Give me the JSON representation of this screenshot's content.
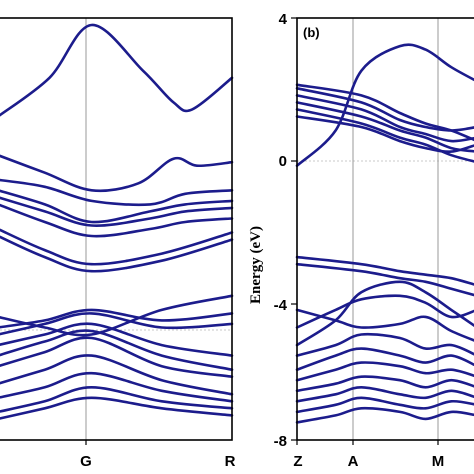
{
  "chart_data": [
    {
      "type": "line",
      "panel_label": "",
      "x_ticks": [
        "G",
        "R"
      ],
      "ylabel": "",
      "ylim": [
        -8,
        4
      ],
      "y_ticks": [],
      "series_color": "#1c1c8c",
      "series": [
        {
          "x": [
            0,
            0.22,
            0.4,
            0.62,
            0.75,
            0.83,
            1.0
          ],
          "values": [
            1.2,
            2.3,
            3.8,
            2.5,
            1.6,
            1.4,
            2.3
          ]
        },
        {
          "x": [
            0,
            0.2,
            0.4,
            0.6,
            0.75,
            0.85,
            1.0
          ],
          "values": [
            0.1,
            -0.4,
            -0.9,
            -0.7,
            0.0,
            -0.2,
            -0.1
          ]
        },
        {
          "x": [
            0,
            0.2,
            0.4,
            0.65,
            0.8,
            1.0
          ],
          "values": [
            -0.6,
            -0.8,
            -1.2,
            -1.3,
            -1.0,
            -0.9
          ]
        },
        {
          "x": [
            0,
            0.2,
            0.4,
            0.65,
            0.8,
            1.0
          ],
          "values": [
            -0.9,
            -1.3,
            -1.8,
            -1.5,
            -1.3,
            -1.2
          ]
        },
        {
          "x": [
            0,
            0.2,
            0.4,
            0.65,
            0.8,
            1.0
          ],
          "values": [
            -1.1,
            -1.5,
            -1.9,
            -1.7,
            -1.5,
            -1.4
          ]
        },
        {
          "x": [
            0,
            0.2,
            0.4,
            0.65,
            0.8,
            1.0
          ],
          "values": [
            -1.3,
            -1.8,
            -2.2,
            -2.0,
            -1.8,
            -1.7
          ]
        },
        {
          "x": [
            0,
            0.2,
            0.4,
            0.7,
            1.0
          ],
          "values": [
            -2.0,
            -2.6,
            -3.0,
            -2.7,
            -2.1
          ]
        },
        {
          "x": [
            0,
            0.2,
            0.4,
            0.7,
            1.0
          ],
          "values": [
            -2.2,
            -2.8,
            -3.2,
            -2.9,
            -2.3
          ]
        },
        {
          "x": [
            0,
            0.2,
            0.4,
            0.7,
            1.0
          ],
          "values": [
            -4.5,
            -4.8,
            -5.0,
            -4.3,
            -3.9
          ]
        },
        {
          "x": [
            0,
            0.2,
            0.4,
            0.7,
            1.0
          ],
          "values": [
            -4.8,
            -4.6,
            -4.3,
            -4.6,
            -4.4
          ]
        },
        {
          "x": [
            0,
            0.2,
            0.4,
            0.7,
            1.0
          ],
          "values": [
            -5.0,
            -4.7,
            -4.4,
            -4.8,
            -4.7
          ]
        },
        {
          "x": [
            0,
            0.2,
            0.4,
            0.7,
            1.0
          ],
          "values": [
            -5.3,
            -5.0,
            -4.7,
            -5.3,
            -5.6
          ]
        },
        {
          "x": [
            0,
            0.2,
            0.4,
            0.7,
            1.0
          ],
          "values": [
            -5.6,
            -5.2,
            -4.9,
            -5.6,
            -6.0
          ]
        },
        {
          "x": [
            0,
            0.2,
            0.4,
            0.7,
            1.0
          ],
          "values": [
            -5.9,
            -5.5,
            -5.1,
            -5.9,
            -6.2
          ]
        },
        {
          "x": [
            0,
            0.2,
            0.4,
            0.7,
            1.0
          ],
          "values": [
            -6.4,
            -6.0,
            -5.6,
            -6.3,
            -6.7
          ]
        },
        {
          "x": [
            0,
            0.2,
            0.4,
            0.7,
            1.0
          ],
          "values": [
            -6.8,
            -6.5,
            -6.1,
            -6.6,
            -6.9
          ]
        },
        {
          "x": [
            0,
            0.2,
            0.4,
            0.7,
            1.0
          ],
          "values": [
            -7.2,
            -6.9,
            -6.5,
            -6.9,
            -7.1
          ]
        },
        {
          "x": [
            0,
            0.2,
            0.4,
            0.7,
            1.0
          ],
          "values": [
            -7.4,
            -7.1,
            -6.8,
            -7.1,
            -7.3
          ]
        }
      ]
    },
    {
      "type": "line",
      "panel_label": "(b)",
      "x_ticks": [
        "Z",
        "A",
        "M"
      ],
      "ylabel": "Energy (eV)",
      "ylim": [
        -8,
        4
      ],
      "y_ticks": [
        "4",
        "0",
        "-4",
        "-8"
      ],
      "series_color": "#1c1c8c",
      "series": [
        {
          "x": [
            0,
            0.3,
            0.5,
            0.8,
            1.0,
            1.2,
            1.4
          ],
          "values": [
            -0.2,
            0.8,
            2.5,
            3.2,
            3.1,
            2.6,
            2.2
          ]
        },
        {
          "x": [
            0,
            0.5,
            0.8,
            1.0,
            1.2,
            1.4
          ],
          "values": [
            2.0,
            1.6,
            1.1,
            0.9,
            0.8,
            0.9
          ]
        },
        {
          "x": [
            0,
            0.5,
            0.8,
            1.0,
            1.2,
            1.4
          ],
          "values": [
            1.8,
            1.4,
            0.9,
            0.7,
            0.5,
            0.6
          ]
        },
        {
          "x": [
            0,
            0.5,
            0.8,
            1.0,
            1.2,
            1.4
          ],
          "values": [
            1.6,
            1.2,
            0.8,
            0.6,
            0.3,
            0.2
          ]
        },
        {
          "x": [
            0,
            0.5,
            0.8,
            1.0,
            1.2,
            1.4
          ],
          "values": [
            1.4,
            1.0,
            0.6,
            0.4,
            0.1,
            -0.1
          ]
        },
        {
          "x": [
            0,
            0.5,
            0.8,
            1.0,
            1.2,
            1.4
          ],
          "values": [
            1.2,
            0.9,
            0.5,
            0.3,
            0.2,
            0.4
          ]
        },
        {
          "x": [
            0,
            0.5,
            0.8,
            1.0,
            1.2,
            1.4
          ],
          "values": [
            2.1,
            1.8,
            1.3,
            1.0,
            0.8,
            0.5
          ]
        },
        {
          "x": [
            0,
            0.5,
            0.8,
            1.0,
            1.2,
            1.4
          ],
          "values": [
            -2.8,
            -3.0,
            -3.2,
            -3.3,
            -3.4,
            -3.6
          ]
        },
        {
          "x": [
            0,
            0.5,
            0.8,
            1.0,
            1.2,
            1.4
          ],
          "values": [
            -3.0,
            -3.2,
            -3.4,
            -3.5,
            -3.7,
            -3.9
          ]
        },
        {
          "x": [
            0,
            0.3,
            0.5,
            0.8,
            1.0,
            1.2,
            1.4
          ],
          "values": [
            -5.3,
            -4.6,
            -3.8,
            -3.5,
            -3.8,
            -4.3,
            -4.8
          ]
        },
        {
          "x": [
            0,
            0.3,
            0.5,
            0.8,
            1.0,
            1.2,
            1.4
          ],
          "values": [
            -4.8,
            -4.3,
            -4.0,
            -3.9,
            -4.1,
            -4.5,
            -4.3
          ]
        },
        {
          "x": [
            0,
            0.3,
            0.5,
            0.8,
            1.0,
            1.2,
            1.4
          ],
          "values": [
            -4.3,
            -4.6,
            -4.8,
            -4.7,
            -4.5,
            -4.9,
            -5.2
          ]
        },
        {
          "x": [
            0,
            0.3,
            0.5,
            0.8,
            1.0,
            1.2,
            1.4
          ],
          "values": [
            -5.6,
            -5.3,
            -5.0,
            -5.1,
            -5.4,
            -5.3,
            -5.6
          ]
        },
        {
          "x": [
            0,
            0.3,
            0.5,
            0.8,
            1.0,
            1.2,
            1.4
          ],
          "values": [
            -6.0,
            -5.6,
            -5.4,
            -5.6,
            -5.8,
            -5.6,
            -5.9
          ]
        },
        {
          "x": [
            0,
            0.3,
            0.5,
            0.8,
            1.0,
            1.2,
            1.4
          ],
          "values": [
            -6.3,
            -6.0,
            -5.8,
            -5.9,
            -6.1,
            -6.0,
            -6.2
          ]
        },
        {
          "x": [
            0,
            0.3,
            0.5,
            0.8,
            1.0,
            1.2,
            1.4
          ],
          "values": [
            -6.6,
            -6.4,
            -6.2,
            -6.3,
            -6.5,
            -6.3,
            -6.5
          ]
        },
        {
          "x": [
            0,
            0.3,
            0.5,
            0.8,
            1.0,
            1.2,
            1.4
          ],
          "values": [
            -6.9,
            -6.7,
            -6.5,
            -6.7,
            -6.8,
            -6.6,
            -6.8
          ]
        },
        {
          "x": [
            0,
            0.3,
            0.5,
            0.8,
            1.0,
            1.2,
            1.4
          ],
          "values": [
            -7.2,
            -7.0,
            -6.8,
            -7.0,
            -7.1,
            -6.9,
            -7.0
          ]
        },
        {
          "x": [
            0,
            0.3,
            0.5,
            0.8,
            1.0,
            1.2,
            1.4
          ],
          "values": [
            -7.5,
            -7.3,
            -7.1,
            -7.2,
            -7.4,
            -7.2,
            -7.3
          ]
        }
      ]
    }
  ]
}
